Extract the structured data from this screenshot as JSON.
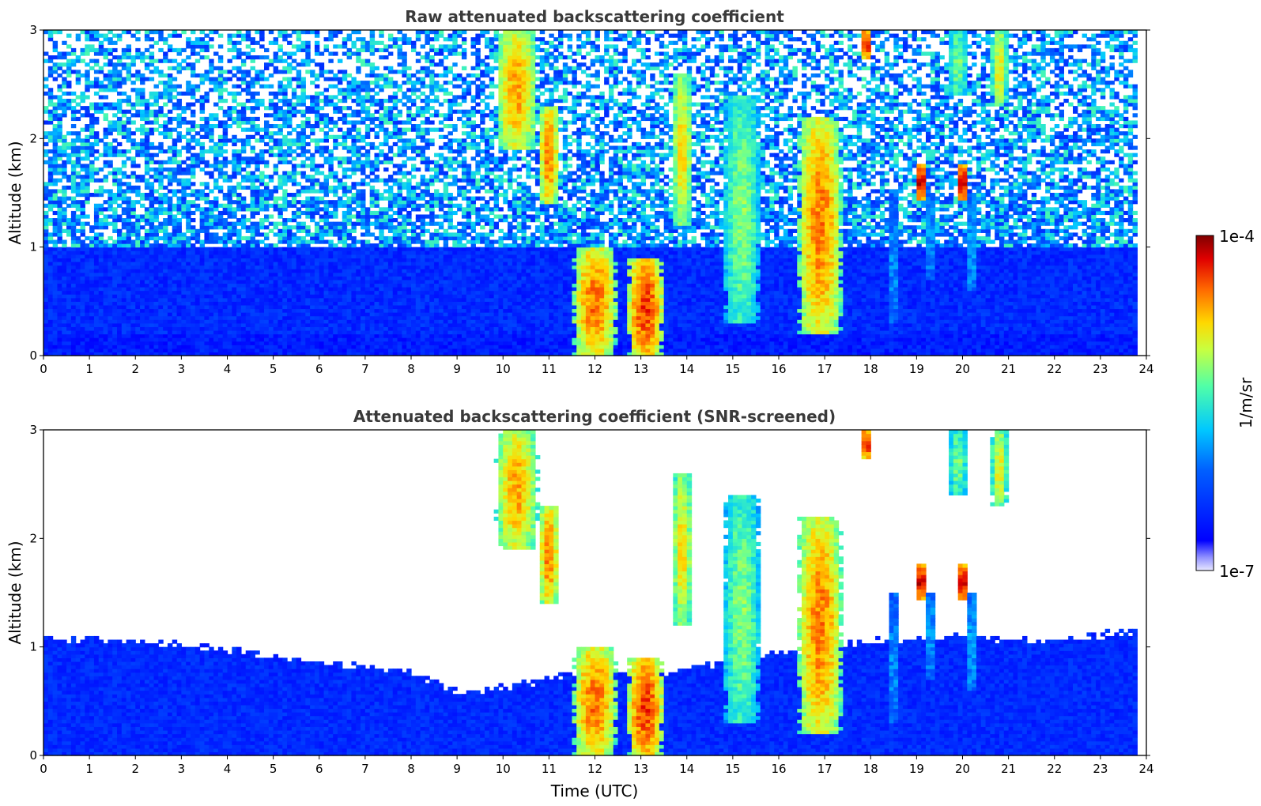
{
  "chart_data": [
    {
      "type": "heatmap",
      "title": "Raw attenuated backscattering coefficient",
      "xlabel": "",
      "ylabel": "Altitude (km)",
      "xlim": [
        0,
        24
      ],
      "ylim": [
        0,
        3
      ],
      "x_ticks": [
        "0",
        "1",
        "2",
        "3",
        "4",
        "5",
        "6",
        "7",
        "8",
        "9",
        "10",
        "11",
        "12",
        "13",
        "14",
        "15",
        "16",
        "17",
        "18",
        "19",
        "20",
        "21",
        "22",
        "23",
        "24"
      ],
      "y_ticks": [
        "0",
        "1",
        "2",
        "3"
      ],
      "grid": false,
      "colormap": "jet",
      "features": [
        {
          "kind": "background_noise",
          "time": [
            0,
            23.8
          ],
          "altitude": [
            1.0,
            3.0
          ],
          "level": 0.45
        },
        {
          "kind": "boundary_layer",
          "time": [
            0,
            23.8
          ],
          "altitude": [
            0,
            1.0
          ],
          "level": 0.18
        },
        {
          "kind": "cloud",
          "time_center": 10.3,
          "time_width": 1.0,
          "altitude": [
            1.9,
            3.0
          ],
          "level": 0.78
        },
        {
          "kind": "cloud",
          "time_center": 11.0,
          "time_width": 0.5,
          "altitude": [
            1.4,
            2.3
          ],
          "level": 0.82
        },
        {
          "kind": "cloud",
          "time_center": 12.0,
          "time_width": 1.1,
          "altitude": [
            0.0,
            1.0
          ],
          "level": 0.83
        },
        {
          "kind": "cloud",
          "time_center": 13.1,
          "time_width": 0.9,
          "altitude": [
            0.0,
            0.9
          ],
          "level": 0.88
        },
        {
          "kind": "cloud",
          "time_center": 13.9,
          "time_width": 0.5,
          "altitude": [
            1.2,
            2.6
          ],
          "level": 0.72
        },
        {
          "kind": "cloud",
          "time_center": 15.2,
          "time_width": 0.9,
          "altitude": [
            0.3,
            2.4
          ],
          "level": 0.6
        },
        {
          "kind": "cloud",
          "time_center": 16.9,
          "time_width": 1.1,
          "altitude": [
            0.2,
            2.2
          ],
          "level": 0.82
        },
        {
          "kind": "cloud",
          "time_center": 17.9,
          "time_width": 0.2,
          "altitude": [
            2.75,
            3.0
          ],
          "level": 0.98
        },
        {
          "kind": "cloud",
          "time_center": 19.1,
          "time_width": 0.3,
          "altitude": [
            1.45,
            1.75
          ],
          "level": 0.98
        },
        {
          "kind": "cloud",
          "time_center": 20.0,
          "time_width": 0.3,
          "altitude": [
            1.45,
            1.75
          ],
          "level": 0.98
        },
        {
          "kind": "cloud",
          "time_center": 19.9,
          "time_width": 0.5,
          "altitude": [
            2.4,
            3.0
          ],
          "level": 0.58
        },
        {
          "kind": "cloud",
          "time_center": 20.8,
          "time_width": 0.4,
          "altitude": [
            2.3,
            3.0
          ],
          "level": 0.7
        },
        {
          "kind": "fall_streak",
          "time_center": 18.5,
          "time_width": 0.2,
          "altitude": [
            0.3,
            1.5
          ],
          "level": 0.38
        },
        {
          "kind": "fall_streak",
          "time_center": 19.3,
          "time_width": 0.2,
          "altitude": [
            0.7,
            1.5
          ],
          "level": 0.4
        },
        {
          "kind": "fall_streak",
          "time_center": 20.2,
          "time_width": 0.25,
          "altitude": [
            0.6,
            1.5
          ],
          "level": 0.4
        }
      ],
      "no_data_after": 23.8
    },
    {
      "type": "heatmap",
      "title": "Attenuated backscattering coefficient (SNR-screened)",
      "xlabel": "Time (UTC)",
      "ylabel": "Altitude (km)",
      "xlim": [
        0,
        24
      ],
      "ylim": [
        0,
        3
      ],
      "x_ticks": [
        "0",
        "1",
        "2",
        "3",
        "4",
        "5",
        "6",
        "7",
        "8",
        "9",
        "10",
        "11",
        "12",
        "13",
        "14",
        "15",
        "16",
        "17",
        "18",
        "19",
        "20",
        "21",
        "22",
        "23",
        "24"
      ],
      "y_ticks": [
        "0",
        "1",
        "2",
        "3"
      ],
      "grid": false,
      "colormap": "jet",
      "screened_regions": "white where SNR is low (above ~1 km outside cloud features)",
      "boundary_layer_top_km": [
        [
          0,
          1.08
        ],
        [
          2,
          1.05
        ],
        [
          4,
          0.98
        ],
        [
          6,
          0.85
        ],
        [
          8,
          0.78
        ],
        [
          9,
          0.58
        ],
        [
          10,
          0.62
        ],
        [
          11,
          0.72
        ],
        [
          14,
          0.78
        ],
        [
          16,
          0.95
        ],
        [
          18,
          1.05
        ],
        [
          20,
          1.1
        ],
        [
          22,
          1.05
        ],
        [
          23.8,
          1.15
        ]
      ],
      "no_data_after": 23.8
    }
  ],
  "colorbar": {
    "label": "1/m/sr",
    "min_label": "1e-7",
    "max_label": "1e-4",
    "scale": "log"
  }
}
